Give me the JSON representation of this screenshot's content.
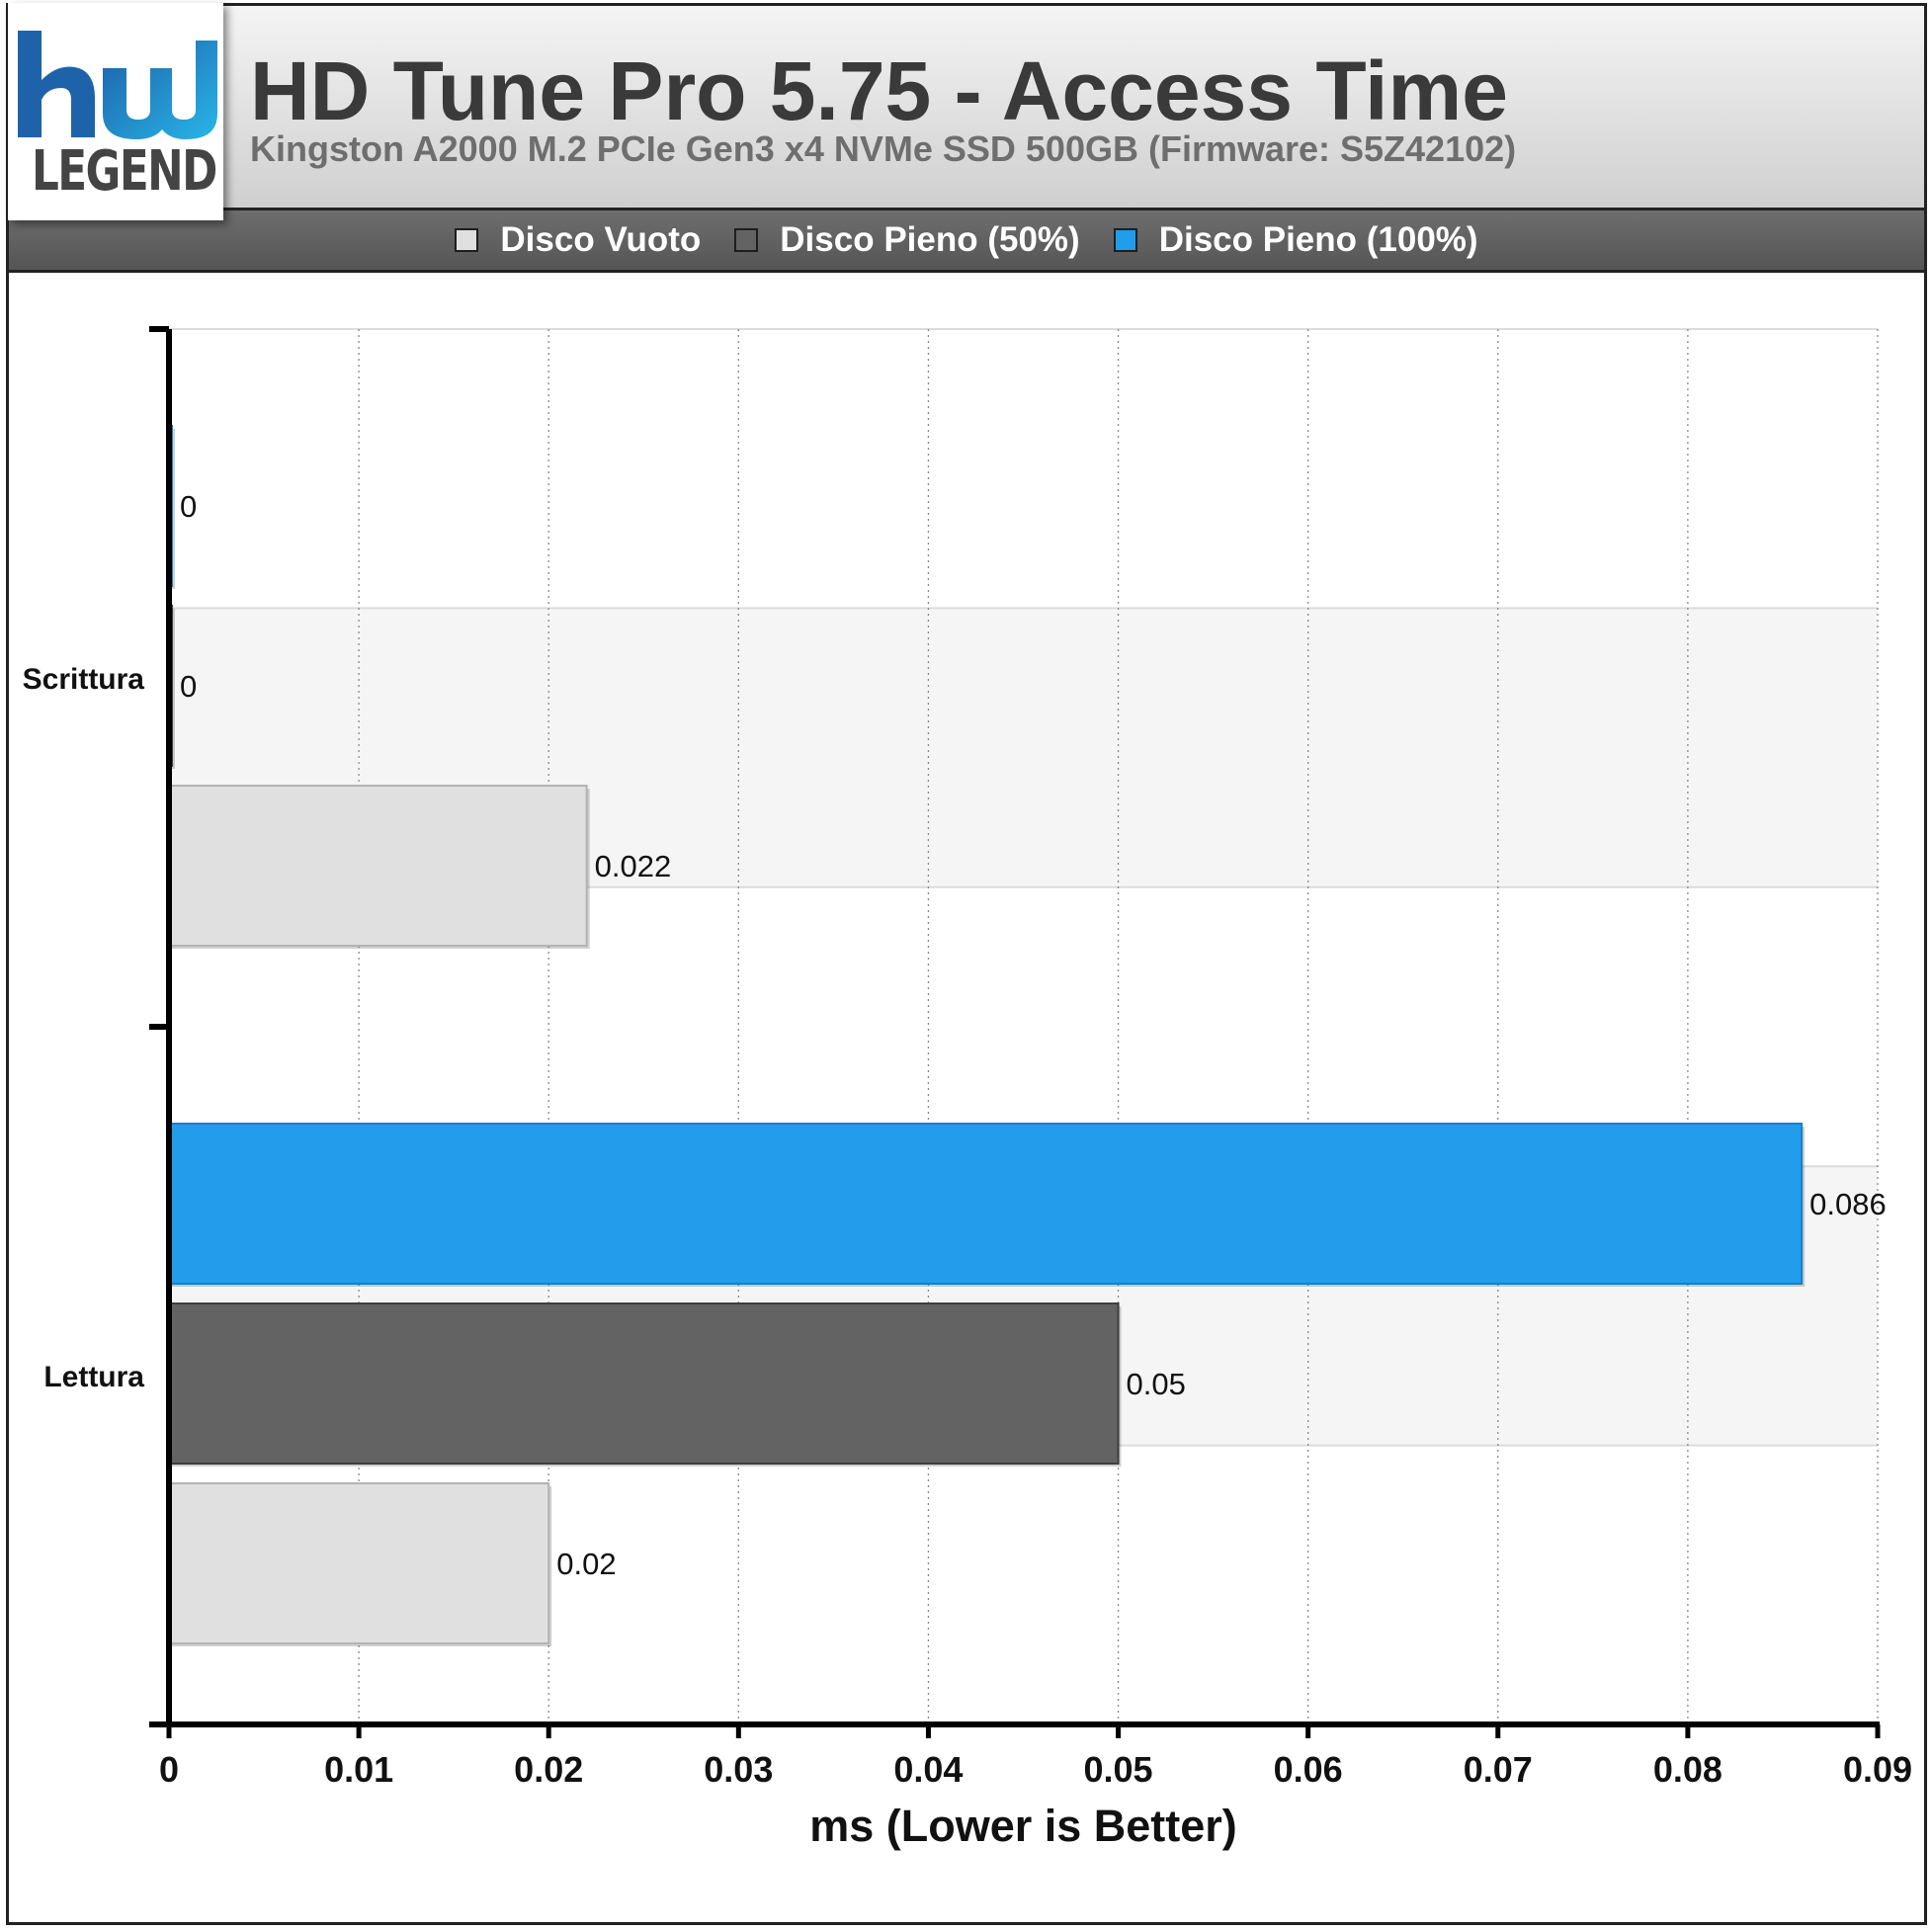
{
  "header": {
    "logo_text": "LEGEND",
    "title": "HD Tune Pro 5.75 - Access Time",
    "subtitle": "Kingston A2000 M.2 PCIe Gen3 x4 NVMe SSD 500GB (Firmware: S5Z42102)"
  },
  "legend": {
    "items": [
      {
        "label": "Disco Vuoto",
        "color": "#e0e0e0"
      },
      {
        "label": "Disco Pieno (50%)",
        "color": "#636363"
      },
      {
        "label": "Disco Pieno (100%)",
        "color": "#219dec"
      }
    ]
  },
  "chart_data": {
    "type": "bar",
    "orientation": "horizontal",
    "title": "HD Tune Pro 5.75 - Access Time",
    "subtitle": "Kingston A2000 M.2 PCIe Gen3 x4 NVMe SSD 500GB (Firmware: S5Z42102)",
    "categories": [
      "Scrittura",
      "Lettura"
    ],
    "series": [
      {
        "name": "Disco Vuoto",
        "color": "#e0e0e0",
        "values": [
          0.022,
          0.02
        ]
      },
      {
        "name": "Disco Pieno (50%)",
        "color": "#636363",
        "values": [
          0,
          0.05
        ]
      },
      {
        "name": "Disco Pieno (100%)",
        "color": "#219dec",
        "values": [
          0,
          0.086
        ]
      }
    ],
    "data_labels": [
      [
        "0.022",
        "0",
        "0"
      ],
      [
        "0.02",
        "0.05",
        "0.086"
      ]
    ],
    "xlabel": "ms (Lower is Better)",
    "xlim": [
      0,
      0.09
    ],
    "xticks": [
      "0",
      "0.01",
      "0.02",
      "0.03",
      "0.04",
      "0.05",
      "0.06",
      "0.07",
      "0.08",
      "0.09"
    ],
    "grid": "vertical dotted",
    "legend_position": "top"
  }
}
